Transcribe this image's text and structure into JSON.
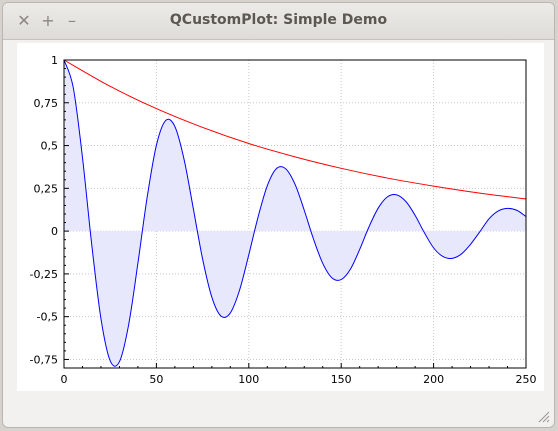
{
  "window": {
    "title": "QCustomPlot: Simple Demo",
    "close_glyph": "✕",
    "add_glyph": "+",
    "minimize_glyph": "–"
  },
  "colors": {
    "curve": "#0000ff",
    "fill": "#e8e8fc",
    "envelope": "#ff0000"
  },
  "chart_data": {
    "type": "line",
    "xlim": [
      0,
      250
    ],
    "ylim": [
      -0.8,
      1
    ],
    "x_ticks": [
      0,
      50,
      100,
      150,
      200,
      250
    ],
    "x_tick_labels": [
      "0",
      "50",
      "100",
      "150",
      "200",
      "250"
    ],
    "y_ticks": [
      1,
      0.75,
      0.5,
      0.25,
      0,
      -0.25,
      -0.5,
      -0.75
    ],
    "y_tick_labels": [
      "1",
      "0,75",
      "0,5",
      "0,25",
      "0",
      "-0,25",
      "-0,5",
      "-0,75"
    ],
    "grid": true,
    "series": [
      {
        "curve": "damped cosine",
        "filled_to_zero": true,
        "x": [
          0,
          5,
          10,
          15,
          20,
          25,
          30,
          35,
          40,
          45,
          50,
          55,
          60,
          65,
          70,
          75,
          80,
          85,
          90,
          95,
          100,
          105,
          110,
          115,
          120,
          125,
          130,
          135,
          140,
          145,
          150,
          155,
          160,
          165,
          170,
          175,
          180,
          185,
          190,
          195,
          200,
          205,
          210,
          215,
          220,
          225,
          230,
          235,
          240,
          245,
          250
        ],
        "y": [
          1.0,
          0.839,
          0.43,
          -0.078,
          -0.512,
          -0.758,
          -0.763,
          -0.546,
          -0.187,
          0.198,
          0.502,
          0.646,
          0.611,
          0.418,
          0.13,
          -0.163,
          -0.386,
          -0.497,
          -0.478,
          -0.345,
          -0.138,
          0.082,
          0.265,
          0.366,
          0.364,
          0.274,
          0.122,
          -0.046,
          -0.188,
          -0.273,
          -0.283,
          -0.222,
          -0.107,
          0.024,
          0.134,
          0.2,
          0.212,
          0.173,
          0.092,
          -0.009,
          -0.098,
          -0.148,
          -0.159,
          -0.134,
          -0.077,
          -0.004,
          0.072,
          0.118,
          0.133,
          0.122,
          0.085
        ]
      },
      {
        "curve": "exponential envelope",
        "x": [
          0,
          25,
          50,
          75,
          100,
          125,
          150,
          175,
          200,
          225,
          250
        ],
        "y": [
          1.0,
          0.846,
          0.716,
          0.606,
          0.512,
          0.434,
          0.367,
          0.31,
          0.263,
          0.222,
          0.188
        ]
      }
    ]
  }
}
